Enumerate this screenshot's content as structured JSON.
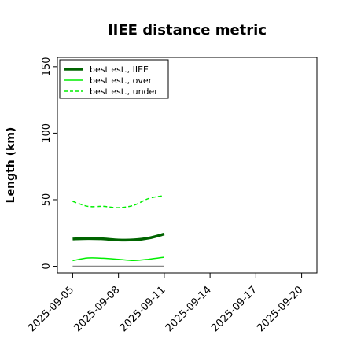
{
  "chart_data": {
    "type": "line",
    "title": "IIEE distance metric",
    "xlabel": "",
    "ylabel": "Length (km)",
    "xlim": [
      "2025-09-04",
      "2025-09-21"
    ],
    "ylim": [
      -5,
      157
    ],
    "yticks": [
      0,
      50,
      100,
      150
    ],
    "xticks": [
      "2025-09-05",
      "2025-09-08",
      "2025-09-11",
      "2025-09-14",
      "2025-09-17",
      "2025-09-20"
    ],
    "x": [
      "2025-09-05",
      "2025-09-06",
      "2025-09-07",
      "2025-09-08",
      "2025-09-09",
      "2025-09-10",
      "2025-09-11"
    ],
    "legend_position": "top-left",
    "grid": false,
    "reference_line": {
      "y": 0,
      "x_from": "2025-09-05",
      "x_to": "2025-09-11",
      "color": "#888888"
    },
    "series": [
      {
        "name": "best est., IIEE",
        "color": "#006400",
        "style": "solid",
        "width": "thick",
        "values": [
          20.5,
          20.8,
          20.6,
          19.7,
          19.8,
          21.2,
          24.2
        ]
      },
      {
        "name": "best est., over",
        "color": "#00ee00",
        "style": "solid",
        "width": "thin",
        "values": [
          4.2,
          6.2,
          6.0,
          5.2,
          4.3,
          5.3,
          6.8
        ]
      },
      {
        "name": "best est., under",
        "color": "#00ee00",
        "style": "dashed",
        "width": "thin",
        "values": [
          48.8,
          45.0,
          45.0,
          44.0,
          45.8,
          51.0,
          53.0
        ]
      }
    ]
  }
}
